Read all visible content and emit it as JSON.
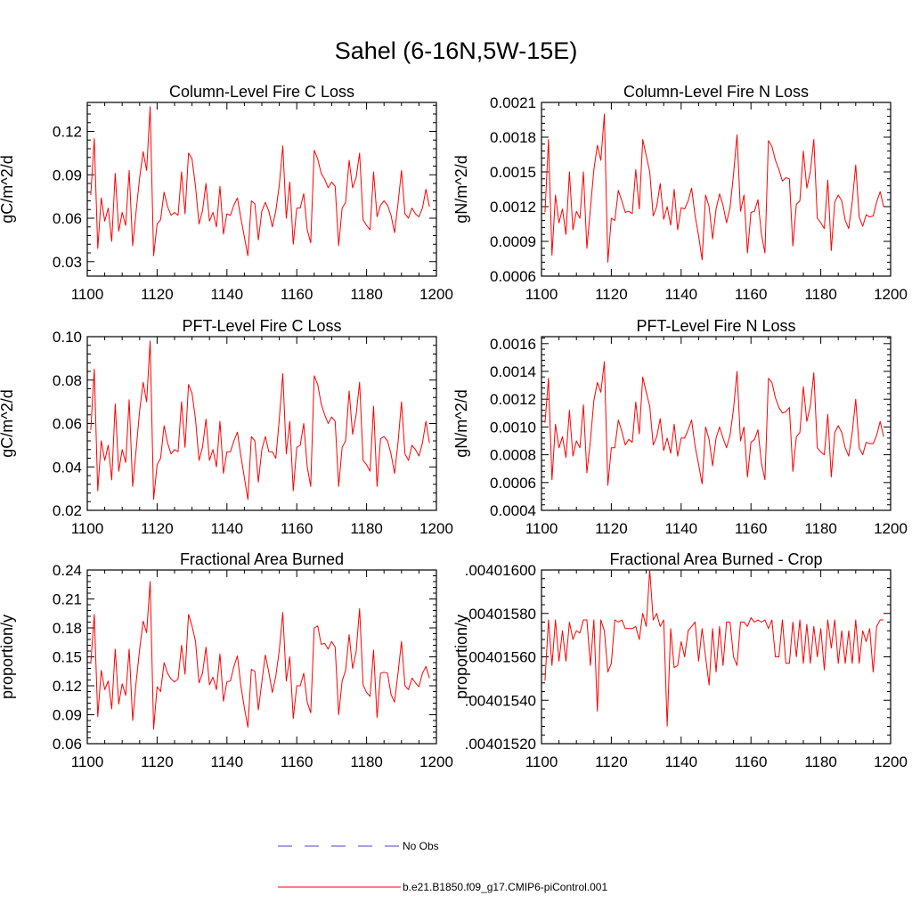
{
  "figure": {
    "title": "Sahel (6-16N,5W-15E)",
    "legend": [
      {
        "label": "No Obs",
        "color": "#4a4ab8",
        "style": "dashed"
      },
      {
        "label": "b.e21.B1850.f09_g17.CMIP6-piControl.001",
        "color": "#ff0000",
        "style": "solid"
      }
    ]
  },
  "chart_data": [
    {
      "type": "line",
      "title": "Column-Level Fire C Loss",
      "xlabel": "",
      "ylabel": "gC/m^2/d",
      "xlim": [
        1100,
        1200
      ],
      "ylim": [
        0.02,
        0.14
      ],
      "xticks": [
        1100,
        1120,
        1140,
        1160,
        1180,
        1200
      ],
      "xtick_labels": [
        "1100",
        "1120",
        "1140",
        "1160",
        "1180",
        "1200"
      ],
      "yticks": [
        0.03,
        0.06,
        0.09,
        0.12
      ],
      "ytick_labels": [
        "0.03",
        "0.06",
        "0.09",
        "0.12"
      ],
      "x_start": 1101,
      "series": [
        {
          "name": "b.e21.B1850.f09_g17.CMIP6-piControl.001",
          "color": "#ff0000",
          "values": [
            0.076,
            0.115,
            0.039,
            0.074,
            0.058,
            0.067,
            0.044,
            0.091,
            0.051,
            0.064,
            0.055,
            0.093,
            0.041,
            0.065,
            0.088,
            0.106,
            0.093,
            0.137,
            0.034,
            0.056,
            0.059,
            0.078,
            0.068,
            0.062,
            0.064,
            0.062,
            0.092,
            0.063,
            0.105,
            0.101,
            0.082,
            0.056,
            0.065,
            0.084,
            0.058,
            0.064,
            0.054,
            0.082,
            0.049,
            0.063,
            0.062,
            0.069,
            0.074,
            0.06,
            0.047,
            0.034,
            0.072,
            0.07,
            0.045,
            0.065,
            0.071,
            0.065,
            0.054,
            0.065,
            0.083,
            0.11,
            0.06,
            0.085,
            0.042,
            0.067,
            0.067,
            0.077,
            0.052,
            0.043,
            0.107,
            0.101,
            0.091,
            0.087,
            0.081,
            0.085,
            0.082,
            0.041,
            0.067,
            0.071,
            0.1,
            0.081,
            0.088,
            0.105,
            0.059,
            0.055,
            0.052,
            0.092,
            0.061,
            0.069,
            0.072,
            0.069,
            0.062,
            0.05,
            0.07,
            0.093,
            0.063,
            0.06,
            0.067,
            0.063,
            0.061,
            0.067,
            0.08,
            0.068
          ]
        }
      ]
    },
    {
      "type": "line",
      "title": "Column-Level Fire N Loss",
      "xlabel": "",
      "ylabel": "gN/m^2/d",
      "xlim": [
        1100,
        1200
      ],
      "ylim": [
        0.0006,
        0.0021
      ],
      "xticks": [
        1100,
        1120,
        1140,
        1160,
        1180,
        1200
      ],
      "xtick_labels": [
        "1100",
        "1120",
        "1140",
        "1160",
        "1180",
        "1200"
      ],
      "yticks": [
        0.0006,
        0.0009,
        0.0012,
        0.0015,
        0.0018,
        0.0021
      ],
      "ytick_labels": [
        "0.0006",
        "0.0009",
        "0.0012",
        "0.0015",
        "0.0018",
        "0.0021"
      ],
      "x_start": 1101,
      "series": [
        {
          "name": "b.e21.B1850.f09_g17.CMIP6-piControl.001",
          "color": "#ff0000",
          "values": [
            0.00115,
            0.00178,
            0.00078,
            0.0013,
            0.00106,
            0.00118,
            0.00096,
            0.0015,
            0.001,
            0.00116,
            0.0011,
            0.0015,
            0.00084,
            0.00118,
            0.00152,
            0.00173,
            0.0016,
            0.002,
            0.00072,
            0.0011,
            0.00108,
            0.00134,
            0.00125,
            0.00115,
            0.00116,
            0.00114,
            0.00152,
            0.00118,
            0.00178,
            0.00164,
            0.0015,
            0.00112,
            0.0012,
            0.0014,
            0.00109,
            0.0012,
            0.00104,
            0.00135,
            0.001,
            0.00119,
            0.00118,
            0.00125,
            0.00136,
            0.00112,
            0.00095,
            0.00074,
            0.0013,
            0.0012,
            0.00092,
            0.00118,
            0.00131,
            0.00121,
            0.00106,
            0.00119,
            0.00148,
            0.00182,
            0.00116,
            0.0013,
            0.0008,
            0.00115,
            0.00116,
            0.00126,
            0.00096,
            0.0008,
            0.00177,
            0.00172,
            0.0016,
            0.00152,
            0.00142,
            0.00145,
            0.00144,
            0.00086,
            0.00122,
            0.00125,
            0.00168,
            0.00136,
            0.0015,
            0.00178,
            0.0011,
            0.00106,
            0.00101,
            0.00143,
            0.00082,
            0.00124,
            0.0013,
            0.00125,
            0.00108,
            0.00101,
            0.00124,
            0.00156,
            0.00111,
            0.00103,
            0.00113,
            0.00111,
            0.00112,
            0.00124,
            0.00133,
            0.0012
          ]
        }
      ]
    },
    {
      "type": "line",
      "title": "PFT-Level Fire C Loss",
      "xlabel": "",
      "ylabel": "gC/m^2/d",
      "xlim": [
        1100,
        1200
      ],
      "ylim": [
        0.02,
        0.1
      ],
      "xticks": [
        1100,
        1120,
        1140,
        1160,
        1180,
        1200
      ],
      "xtick_labels": [
        "1100",
        "1120",
        "1140",
        "1160",
        "1180",
        "1200"
      ],
      "yticks": [
        0.02,
        0.04,
        0.06,
        0.08,
        0.1
      ],
      "ytick_labels": [
        "0.02",
        "0.04",
        "0.06",
        "0.08",
        "0.10"
      ],
      "x_start": 1101,
      "series": [
        {
          "name": "b.e21.B1850.f09_g17.CMIP6-piControl.001",
          "color": "#ff0000",
          "values": [
            0.057,
            0.085,
            0.029,
            0.052,
            0.043,
            0.05,
            0.034,
            0.069,
            0.038,
            0.048,
            0.042,
            0.071,
            0.031,
            0.048,
            0.066,
            0.079,
            0.07,
            0.098,
            0.025,
            0.041,
            0.044,
            0.059,
            0.051,
            0.046,
            0.048,
            0.047,
            0.07,
            0.049,
            0.078,
            0.074,
            0.062,
            0.043,
            0.049,
            0.062,
            0.043,
            0.048,
            0.04,
            0.061,
            0.037,
            0.047,
            0.047,
            0.052,
            0.056,
            0.045,
            0.035,
            0.025,
            0.054,
            0.052,
            0.033,
            0.048,
            0.054,
            0.047,
            0.047,
            0.044,
            0.062,
            0.083,
            0.046,
            0.061,
            0.029,
            0.049,
            0.05,
            0.06,
            0.04,
            0.031,
            0.082,
            0.078,
            0.069,
            0.064,
            0.06,
            0.063,
            0.061,
            0.031,
            0.049,
            0.052,
            0.075,
            0.055,
            0.064,
            0.079,
            0.043,
            0.041,
            0.038,
            0.068,
            0.031,
            0.053,
            0.054,
            0.052,
            0.046,
            0.037,
            0.051,
            0.07,
            0.046,
            0.043,
            0.05,
            0.048,
            0.045,
            0.051,
            0.061,
            0.051
          ]
        }
      ]
    },
    {
      "type": "line",
      "title": "PFT-Level Fire N Loss",
      "xlabel": "",
      "ylabel": "gN/m^2/d",
      "xlim": [
        1100,
        1200
      ],
      "ylim": [
        0.0004,
        0.00165
      ],
      "xticks": [
        1100,
        1120,
        1140,
        1160,
        1180,
        1200
      ],
      "xtick_labels": [
        "1100",
        "1120",
        "1140",
        "1160",
        "1180",
        "1200"
      ],
      "yticks": [
        0.0004,
        0.0006,
        0.0008,
        0.001,
        0.0012,
        0.0014,
        0.0016
      ],
      "ytick_labels": [
        "0.0004",
        "0.0006",
        "0.0008",
        "0.0010",
        "0.0012",
        "0.0014",
        "0.0016"
      ],
      "x_start": 1101,
      "series": [
        {
          "name": "b.e21.B1850.f09_g17.CMIP6-piControl.001",
          "color": "#ff0000",
          "values": [
            0.00103,
            0.00135,
            0.00062,
            0.00102,
            0.00085,
            0.00093,
            0.00078,
            0.00112,
            0.00079,
            0.0009,
            0.00085,
            0.00116,
            0.00067,
            0.0009,
            0.00119,
            0.00132,
            0.00125,
            0.00147,
            0.00058,
            0.00085,
            0.00085,
            0.00105,
            0.00097,
            0.00087,
            0.00091,
            0.00089,
            0.00118,
            0.00095,
            0.00136,
            0.00125,
            0.00115,
            0.00087,
            0.00093,
            0.00106,
            0.00083,
            0.00092,
            0.00081,
            0.00102,
            0.00079,
            0.00092,
            0.00092,
            0.00098,
            0.00105,
            0.00086,
            0.00073,
            0.00059,
            0.001,
            0.00091,
            0.00072,
            0.00092,
            0.001,
            0.00092,
            0.00085,
            0.00094,
            0.00113,
            0.0014,
            0.0009,
            0.001,
            0.00064,
            0.00089,
            0.00091,
            0.00098,
            0.00074,
            0.00062,
            0.00135,
            0.00132,
            0.00121,
            0.00114,
            0.0011,
            0.00111,
            0.00114,
            0.00068,
            0.00093,
            0.00096,
            0.00129,
            0.00104,
            0.00115,
            0.00139,
            0.00085,
            0.00082,
            0.0008,
            0.00109,
            0.00064,
            0.00096,
            0.00101,
            0.00096,
            0.00085,
            0.00079,
            0.00096,
            0.0012,
            0.00085,
            0.0008,
            0.00089,
            0.00088,
            0.00088,
            0.00094,
            0.00104,
            0.00093
          ]
        }
      ]
    },
    {
      "type": "line",
      "title": "Fractional Area Burned",
      "xlabel": "",
      "ylabel": "proportion/y",
      "xlim": [
        1100,
        1200
      ],
      "ylim": [
        0.06,
        0.24
      ],
      "xticks": [
        1100,
        1120,
        1140,
        1160,
        1180,
        1200
      ],
      "xtick_labels": [
        "1100",
        "1120",
        "1140",
        "1160",
        "1180",
        "1200"
      ],
      "yticks": [
        0.06,
        0.09,
        0.12,
        0.15,
        0.18,
        0.21,
        0.24
      ],
      "ytick_labels": [
        "0.06",
        "0.09",
        "0.12",
        "0.15",
        "0.18",
        "0.21",
        "0.24"
      ],
      "x_start": 1101,
      "series": [
        {
          "name": "b.e21.B1850.f09_g17.CMIP6-piControl.001",
          "color": "#ff0000",
          "values": [
            0.143,
            0.194,
            0.088,
            0.136,
            0.116,
            0.125,
            0.096,
            0.158,
            0.101,
            0.122,
            0.11,
            0.158,
            0.084,
            0.124,
            0.158,
            0.187,
            0.175,
            0.228,
            0.075,
            0.119,
            0.114,
            0.144,
            0.133,
            0.127,
            0.124,
            0.127,
            0.162,
            0.132,
            0.194,
            0.182,
            0.166,
            0.123,
            0.133,
            0.16,
            0.121,
            0.129,
            0.116,
            0.153,
            0.104,
            0.124,
            0.125,
            0.14,
            0.151,
            0.12,
            0.097,
            0.077,
            0.137,
            0.135,
            0.095,
            0.124,
            0.152,
            0.134,
            0.113,
            0.13,
            0.157,
            0.196,
            0.125,
            0.15,
            0.086,
            0.12,
            0.12,
            0.133,
            0.103,
            0.092,
            0.18,
            0.182,
            0.163,
            0.164,
            0.158,
            0.166,
            0.16,
            0.09,
            0.125,
            0.136,
            0.173,
            0.138,
            0.155,
            0.2,
            0.121,
            0.113,
            0.109,
            0.157,
            0.087,
            0.133,
            0.134,
            0.133,
            0.111,
            0.103,
            0.133,
            0.166,
            0.12,
            0.116,
            0.128,
            0.123,
            0.119,
            0.133,
            0.14,
            0.128
          ]
        }
      ]
    },
    {
      "type": "line",
      "title": "Fractional Area Burned - Crop",
      "xlabel": "",
      "ylabel": "proportion/y",
      "xlim": [
        1100,
        1200
      ],
      "ylim": [
        0.0040152,
        0.004016
      ],
      "xticks": [
        1100,
        1120,
        1140,
        1160,
        1180,
        1200
      ],
      "xtick_labels": [
        "1100",
        "1120",
        "1140",
        "1160",
        "1180",
        "1200"
      ],
      "yticks": [
        0.0040152,
        0.0040154,
        0.0040156,
        0.0040158,
        0.004016
      ],
      "ytick_labels": [
        ".00401520",
        ".00401540",
        ".00401560",
        ".00401580",
        ".00401600"
      ],
      "x_start": 1101,
      "series": [
        {
          "name": "b.e21.B1850.f09_g17.CMIP6-piControl.001",
          "color": "#ff0000",
          "values": [
            0.00401549,
            0.00401577,
            0.00401556,
            0.00401577,
            0.00401558,
            0.00401572,
            0.00401558,
            0.00401576,
            0.00401568,
            0.00401572,
            0.00401571,
            0.00401577,
            0.00401577,
            0.00401556,
            0.00401577,
            0.00401535,
            0.00401577,
            0.00401572,
            0.00401553,
            0.00401557,
            0.00401577,
            0.00401576,
            0.00401577,
            0.00401573,
            0.00401573,
            0.00401573,
            0.00401574,
            0.00401568,
            0.0040158,
            0.00401574,
            0.004016,
            0.00401577,
            0.0040158,
            0.00401574,
            0.00401577,
            0.00401528,
            0.00401573,
            0.00401555,
            0.00401556,
            0.00401567,
            0.0040156,
            0.00401572,
            0.00401574,
            0.00401576,
            0.00401558,
            0.00401573,
            0.0040156,
            0.00401547,
            0.00401573,
            0.00401553,
            0.00401574,
            0.00401556,
            0.00401576,
            0.00401576,
            0.0040156,
            0.00401556,
            0.00401576,
            0.00401576,
            0.00401574,
            0.00401578,
            0.00401576,
            0.00401577,
            0.00401576,
            0.00401577,
            0.00401573,
            0.00401577,
            0.0040156,
            0.0040156,
            0.00401577,
            0.00401557,
            0.00401557,
            0.00401576,
            0.0040156,
            0.00401577,
            0.00401557,
            0.00401575,
            0.00401557,
            0.00401574,
            0.0040156,
            0.00401573,
            0.00401554,
            0.00401577,
            0.00401564,
            0.00401577,
            0.00401557,
            0.00401572,
            0.00401557,
            0.00401572,
            0.00401557,
            0.00401577,
            0.00401557,
            0.00401572,
            0.00401567,
            0.00401573,
            0.00401553,
            0.00401574,
            0.00401577,
            0.00401577
          ]
        }
      ]
    }
  ]
}
